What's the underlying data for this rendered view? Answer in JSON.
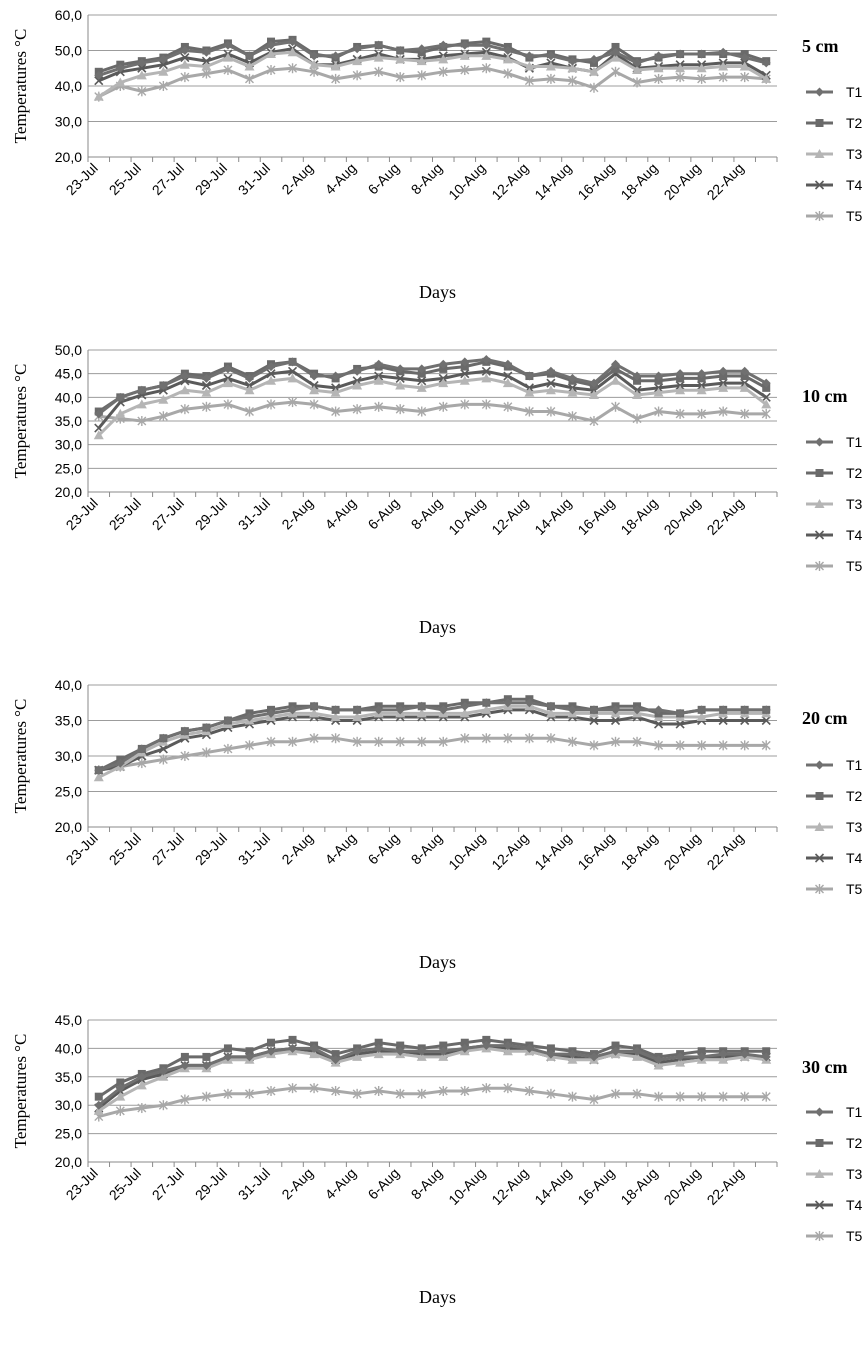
{
  "palette": {
    "T1": "#707070",
    "T2": "#6a6a6a",
    "T3": "#b5b5b5",
    "T4": "#5a5a5a",
    "T5": "#a8a8a8",
    "grid": "#9c9c9c",
    "axis": "#8a8a8a",
    "text": "#000000"
  },
  "markers": {
    "T1": "diamond",
    "T2": "square",
    "T3": "triangle",
    "T4": "x",
    "T5": "star"
  },
  "chart_data": [
    {
      "type": "line",
      "title": "5 cm",
      "xlabel": "Days",
      "ylabel": "Temperatures °C",
      "ylim": [
        20,
        60
      ],
      "yticks": [
        "20,0",
        "30,0",
        "40,0",
        "50,0",
        "60,0"
      ],
      "ytick_values": [
        20,
        30,
        40,
        50,
        60
      ],
      "categories": [
        "23-Jul",
        "24-Jul",
        "25-Jul",
        "26-Jul",
        "27-Jul",
        "28-Jul",
        "29-Jul",
        "30-Jul",
        "31-Jul",
        "1-Aug",
        "2-Aug",
        "3-Aug",
        "4-Aug",
        "5-Aug",
        "6-Aug",
        "7-Aug",
        "8-Aug",
        "9-Aug",
        "10-Aug",
        "11-Aug",
        "12-Aug",
        "13-Aug",
        "14-Aug",
        "15-Aug",
        "16-Aug",
        "17-Aug",
        "18-Aug",
        "19-Aug",
        "20-Aug",
        "21-Aug",
        "22-Aug",
        "23-Aug"
      ],
      "tick_labels": [
        "23-Jul",
        "25-Jul",
        "27-Jul",
        "29-Jul",
        "31-Jul",
        "2-Aug",
        "4-Aug",
        "6-Aug",
        "8-Aug",
        "10-Aug",
        "12-Aug",
        "14-Aug",
        "16-Aug",
        "18-Aug",
        "20-Aug",
        "22-Aug"
      ],
      "legend_position": "right",
      "grid": true,
      "series": [
        {
          "name": "T1",
          "values": [
            43,
            45,
            46.5,
            47.5,
            50,
            49.5,
            51.5,
            48.5,
            51.5,
            52.5,
            48.5,
            48.5,
            50.5,
            51.5,
            50,
            50.5,
            51.5,
            51.5,
            51.5,
            50,
            48.5,
            48.5,
            47,
            47.5,
            49.5,
            46.5,
            48.5,
            49,
            49,
            49.5,
            48,
            46.5
          ]
        },
        {
          "name": "T2",
          "values": [
            44,
            46,
            47,
            48,
            51,
            50,
            52,
            48.5,
            52.5,
            53,
            49,
            48,
            51,
            51.5,
            50,
            49.5,
            51,
            52,
            52.5,
            51,
            48,
            49,
            47.5,
            46.5,
            51,
            47,
            48,
            49,
            49,
            49,
            49,
            47
          ]
        },
        {
          "name": "T3",
          "values": [
            37,
            41,
            43,
            44,
            46,
            45.5,
            48,
            45.5,
            49,
            49.5,
            46,
            45.5,
            47,
            48,
            47.5,
            47,
            47.5,
            48.5,
            48.5,
            47.5,
            45.5,
            45.5,
            45,
            44,
            48,
            44.5,
            45,
            45,
            45,
            45.5,
            45.5,
            42
          ]
        },
        {
          "name": "T4",
          "values": [
            41.5,
            44,
            45,
            46,
            48,
            47,
            49,
            46.5,
            49.5,
            50.5,
            46,
            46,
            47.5,
            49,
            47.5,
            47.5,
            48.5,
            49,
            49.5,
            48,
            45,
            46.5,
            45,
            44,
            49,
            45,
            45.5,
            46,
            46,
            46.5,
            46.5,
            43
          ]
        },
        {
          "name": "T5",
          "values": [
            37,
            40,
            38.5,
            40,
            42.5,
            43.5,
            44.5,
            42,
            44.5,
            45,
            44,
            42,
            43,
            44,
            42.5,
            43,
            44,
            44.5,
            45,
            43.5,
            41.5,
            42,
            41.5,
            39.5,
            44,
            41,
            42,
            42.5,
            42,
            42.5,
            42.5,
            42
          ]
        }
      ]
    },
    {
      "type": "line",
      "title": "10 cm",
      "xlabel": "Days",
      "ylabel": "Temperatures °C",
      "ylim": [
        20,
        50
      ],
      "yticks": [
        "20,0",
        "25,0",
        "30,0",
        "35,0",
        "40,0",
        "45,0",
        "50,0"
      ],
      "ytick_values": [
        20,
        25,
        30,
        35,
        40,
        45,
        50
      ],
      "categories": [
        "23-Jul",
        "24-Jul",
        "25-Jul",
        "26-Jul",
        "27-Jul",
        "28-Jul",
        "29-Jul",
        "30-Jul",
        "31-Jul",
        "1-Aug",
        "2-Aug",
        "3-Aug",
        "4-Aug",
        "5-Aug",
        "6-Aug",
        "7-Aug",
        "8-Aug",
        "9-Aug",
        "10-Aug",
        "11-Aug",
        "12-Aug",
        "13-Aug",
        "14-Aug",
        "15-Aug",
        "16-Aug",
        "17-Aug",
        "18-Aug",
        "19-Aug",
        "20-Aug",
        "21-Aug",
        "22-Aug",
        "23-Aug"
      ],
      "tick_labels": [
        "23-Jul",
        "25-Jul",
        "27-Jul",
        "29-Jul",
        "31-Jul",
        "2-Aug",
        "4-Aug",
        "6-Aug",
        "8-Aug",
        "10-Aug",
        "12-Aug",
        "14-Aug",
        "16-Aug",
        "18-Aug",
        "20-Aug",
        "22-Aug"
      ],
      "legend_position": "right",
      "grid": true,
      "series": [
        {
          "name": "T1",
          "values": [
            36.5,
            40,
            41.5,
            42.5,
            44.5,
            44,
            46,
            44,
            46.5,
            47.5,
            44.5,
            44.5,
            45.5,
            47,
            46,
            46,
            47,
            47.5,
            48,
            47,
            44.5,
            45.5,
            44,
            43,
            47,
            44.5,
            44.5,
            45,
            45,
            45.5,
            45.5,
            43
          ]
        },
        {
          "name": "T2",
          "values": [
            37,
            40,
            41.5,
            42.5,
            45,
            44.5,
            46.5,
            44.5,
            47,
            47.5,
            45,
            44,
            46,
            46.5,
            45.5,
            45,
            46,
            46.5,
            47.5,
            46.5,
            44.5,
            45,
            43.5,
            42.5,
            46,
            43.5,
            43.5,
            44,
            44,
            44.5,
            44.5,
            42
          ]
        },
        {
          "name": "T3",
          "values": [
            32,
            36.5,
            38.5,
            39.5,
            41.5,
            41,
            43,
            41.5,
            43.5,
            44,
            41.5,
            41,
            42.5,
            43.5,
            42.5,
            42,
            43,
            43.5,
            44,
            43,
            41,
            41.5,
            41,
            40.5,
            43.5,
            40.5,
            41,
            41.5,
            41.5,
            42,
            42,
            38.5
          ]
        },
        {
          "name": "T4",
          "values": [
            33.5,
            39,
            40.5,
            41.5,
            43.5,
            42.5,
            44,
            42.5,
            45,
            45.5,
            42.5,
            42,
            43.5,
            44.5,
            44,
            43.5,
            44,
            45,
            45.5,
            44.5,
            42,
            43,
            42,
            41.5,
            45,
            41.5,
            42,
            42.5,
            42.5,
            43,
            43,
            40
          ]
        },
        {
          "name": "T5",
          "values": [
            36,
            35.5,
            35,
            36,
            37.5,
            38,
            38.5,
            37,
            38.5,
            39,
            38.5,
            37,
            37.5,
            38,
            37.5,
            37,
            38,
            38.5,
            38.5,
            38,
            37,
            37,
            36,
            35,
            38,
            35.5,
            37,
            36.5,
            36.5,
            37,
            36.5,
            36.5
          ]
        }
      ]
    },
    {
      "type": "line",
      "title": "20 cm",
      "xlabel": "Days",
      "ylabel": "Temperatures °C",
      "ylim": [
        20,
        40
      ],
      "yticks": [
        "20,0",
        "25,0",
        "30,0",
        "35,0",
        "40,0"
      ],
      "ytick_values": [
        20,
        25,
        30,
        35,
        40
      ],
      "categories": [
        "23-Jul",
        "24-Jul",
        "25-Jul",
        "26-Jul",
        "27-Jul",
        "28-Jul",
        "29-Jul",
        "30-Jul",
        "31-Jul",
        "1-Aug",
        "2-Aug",
        "3-Aug",
        "4-Aug",
        "5-Aug",
        "6-Aug",
        "7-Aug",
        "8-Aug",
        "9-Aug",
        "10-Aug",
        "11-Aug",
        "12-Aug",
        "13-Aug",
        "14-Aug",
        "15-Aug",
        "16-Aug",
        "17-Aug",
        "18-Aug",
        "19-Aug",
        "20-Aug",
        "21-Aug",
        "22-Aug",
        "23-Aug"
      ],
      "tick_labels": [
        "23-Jul",
        "25-Jul",
        "27-Jul",
        "29-Jul",
        "31-Jul",
        "2-Aug",
        "4-Aug",
        "6-Aug",
        "8-Aug",
        "10-Aug",
        "12-Aug",
        "14-Aug",
        "16-Aug",
        "18-Aug",
        "20-Aug",
        "22-Aug"
      ],
      "legend_position": "right",
      "grid": true,
      "series": [
        {
          "name": "T1",
          "values": [
            28,
            29,
            31,
            32.5,
            33.5,
            34,
            35,
            35.5,
            36,
            36.5,
            37,
            36.5,
            36.5,
            36.5,
            36.5,
            37,
            36.5,
            37,
            37.5,
            37.5,
            37.5,
            37,
            36.5,
            36.5,
            36.5,
            36.5,
            36.5,
            36,
            36.5,
            36.5,
            36.5,
            36.5
          ]
        },
        {
          "name": "T2",
          "values": [
            28,
            29.5,
            31,
            32.5,
            33.5,
            34,
            35,
            36,
            36.5,
            37,
            37,
            36.5,
            36.5,
            37,
            37,
            37,
            37,
            37.5,
            37.5,
            38,
            38,
            37,
            37,
            36.5,
            37,
            37,
            36,
            36,
            36.5,
            36.5,
            36.5,
            36.5
          ]
        },
        {
          "name": "T3",
          "values": [
            27,
            28.5,
            30.5,
            32,
            33,
            33.5,
            34.5,
            35,
            35.5,
            36,
            36,
            35.5,
            35.5,
            36,
            36,
            36,
            36,
            36,
            36.5,
            37,
            37,
            36,
            36,
            36,
            36,
            36,
            35.5,
            35.5,
            35.5,
            36,
            36,
            36
          ]
        },
        {
          "name": "T4",
          "values": [
            28,
            28.5,
            30,
            31,
            32.5,
            33,
            34,
            34.5,
            35,
            35.5,
            35.5,
            35,
            35,
            35.5,
            35.5,
            35.5,
            35.5,
            35.5,
            36,
            36.5,
            36.5,
            35.5,
            35.5,
            35,
            35,
            35.5,
            34.5,
            34.5,
            35,
            35,
            35,
            35
          ]
        },
        {
          "name": "T5",
          "values": [
            28,
            28.5,
            29,
            29.5,
            30,
            30.5,
            31,
            31.5,
            32,
            32,
            32.5,
            32.5,
            32,
            32,
            32,
            32,
            32,
            32.5,
            32.5,
            32.5,
            32.5,
            32.5,
            32,
            31.5,
            32,
            32,
            31.5,
            31.5,
            31.5,
            31.5,
            31.5,
            31.5
          ]
        }
      ]
    },
    {
      "type": "line",
      "title": "30 cm",
      "xlabel": "Days",
      "ylabel": "Temperatures °C",
      "ylim": [
        20,
        45
      ],
      "yticks": [
        "20,0",
        "25,0",
        "30,0",
        "35,0",
        "40,0",
        "45,0"
      ],
      "ytick_values": [
        20,
        25,
        30,
        35,
        40,
        45
      ],
      "categories": [
        "23-Jul",
        "24-Jul",
        "25-Jul",
        "26-Jul",
        "27-Jul",
        "28-Jul",
        "29-Jul",
        "30-Jul",
        "31-Jul",
        "1-Aug",
        "2-Aug",
        "3-Aug",
        "4-Aug",
        "5-Aug",
        "6-Aug",
        "7-Aug",
        "8-Aug",
        "9-Aug",
        "10-Aug",
        "11-Aug",
        "12-Aug",
        "13-Aug",
        "14-Aug",
        "15-Aug",
        "16-Aug",
        "17-Aug",
        "18-Aug",
        "19-Aug",
        "20-Aug",
        "21-Aug",
        "22-Aug",
        "23-Aug"
      ],
      "tick_labels": [
        "23-Jul",
        "25-Jul",
        "27-Jul",
        "29-Jul",
        "31-Jul",
        "2-Aug",
        "4-Aug",
        "6-Aug",
        "8-Aug",
        "10-Aug",
        "12-Aug",
        "14-Aug",
        "16-Aug",
        "18-Aug",
        "20-Aug",
        "22-Aug"
      ],
      "legend_position": "right",
      "grid": true,
      "series": [
        {
          "name": "T1",
          "values": [
            30,
            33,
            35,
            36,
            37,
            37,
            38.5,
            38.5,
            39.5,
            40,
            40,
            38,
            39.5,
            40,
            39.5,
            39.5,
            39.5,
            40,
            40.5,
            40.5,
            40,
            39,
            39,
            38.5,
            39.5,
            39.5,
            38,
            38.5,
            38.5,
            39,
            39,
            38.5
          ]
        },
        {
          "name": "T2",
          "values": [
            31.5,
            34,
            35.5,
            36.5,
            38.5,
            38.5,
            40,
            39.5,
            41,
            41.5,
            40.5,
            39,
            40,
            41,
            40.5,
            40,
            40.5,
            41,
            41.5,
            41,
            40.5,
            40,
            39.5,
            39,
            40.5,
            40,
            38.5,
            39,
            39.5,
            39.5,
            39.5,
            39.5
          ]
        },
        {
          "name": "T3",
          "values": [
            29,
            31.5,
            33.5,
            35,
            36.5,
            36.5,
            38,
            38,
            39,
            39.5,
            39,
            37.5,
            38.5,
            39,
            39,
            38.5,
            38.5,
            39.5,
            40,
            39.5,
            39.5,
            38.5,
            38,
            38,
            39,
            38.5,
            37,
            37.5,
            38,
            38,
            38.5,
            38
          ]
        },
        {
          "name": "T4",
          "values": [
            29.5,
            32.5,
            34.5,
            35.5,
            37,
            37,
            38.5,
            38.5,
            39.5,
            40,
            39.5,
            38,
            39,
            39.5,
            39.5,
            39,
            39,
            40,
            40.5,
            40,
            39.5,
            38.5,
            38.5,
            38,
            39,
            39,
            37.5,
            38,
            38.5,
            38.5,
            38.5,
            38.5
          ]
        },
        {
          "name": "T5",
          "values": [
            28,
            29,
            29.5,
            30,
            31,
            31.5,
            32,
            32,
            32.5,
            33,
            33,
            32.5,
            32,
            32.5,
            32,
            32,
            32.5,
            32.5,
            33,
            33,
            32.5,
            32,
            31.5,
            31,
            32,
            32,
            31.5,
            31.5,
            31.5,
            31.5,
            31.5,
            31.5
          ]
        }
      ]
    }
  ]
}
